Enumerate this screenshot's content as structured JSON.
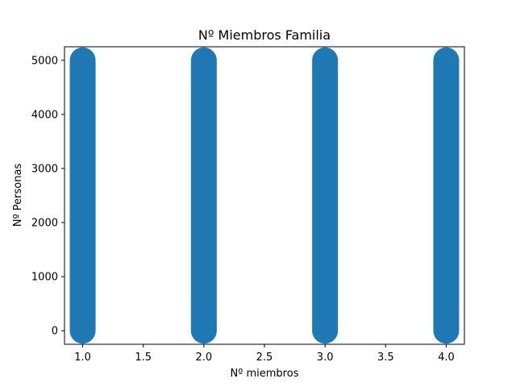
{
  "chart_data": {
    "type": "scatter",
    "title": "Nº Miembros Familia",
    "xlabel": "Nº miembros",
    "ylabel": "Nº Personas",
    "xlim": [
      0.85,
      4.15
    ],
    "ylim": [
      -250,
      5250
    ],
    "xticks": [
      1.0,
      1.5,
      2.0,
      2.5,
      3.0,
      3.5,
      4.0
    ],
    "xtick_labels": [
      "1.0",
      "1.5",
      "2.0",
      "2.5",
      "3.0",
      "3.5",
      "4.0"
    ],
    "yticks": [
      0,
      1000,
      2000,
      3000,
      4000,
      5000
    ],
    "ytick_labels": [
      "0",
      "1000",
      "2000",
      "3000",
      "4000",
      "5000"
    ],
    "grid": false,
    "series": [
      {
        "color": "#1f77b4",
        "x": [
          1,
          2,
          3,
          4
        ],
        "y_range": [
          0,
          5000
        ]
      }
    ]
  }
}
